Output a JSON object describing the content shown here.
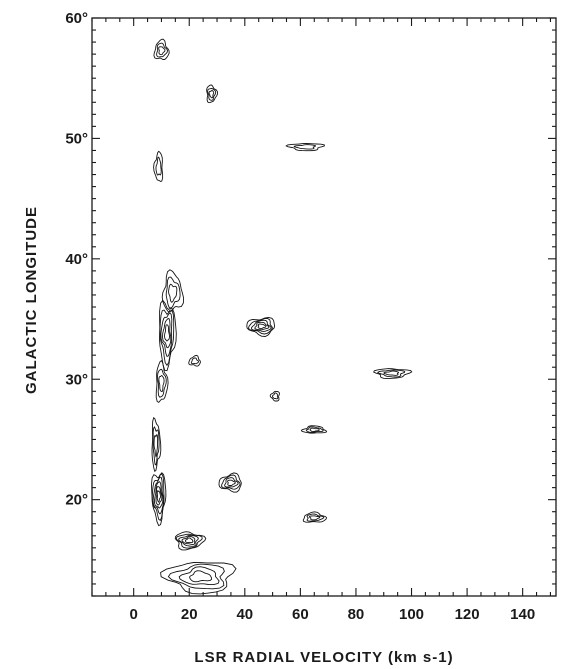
{
  "chart_data": {
    "type": "contour",
    "title": "",
    "xlabel": "LSR RADIAL VELOCITY (km s-1)",
    "ylabel": "GALACTIC LONGITUDE",
    "xlim": [
      -15,
      152
    ],
    "ylim": [
      12,
      60
    ],
    "x_ticks_labeled": [
      0,
      20,
      40,
      60,
      80,
      100,
      120,
      140
    ],
    "x_tick_labels": [
      "0",
      "20",
      "40",
      "60",
      "80",
      "100",
      "120",
      "140"
    ],
    "x_minor_step": 5,
    "y_ticks_labeled": [
      20,
      30,
      40,
      50,
      60
    ],
    "y_tick_labels": [
      "20°",
      "30°",
      "40°",
      "50°",
      "60°"
    ],
    "y_minor_step": 1,
    "grid": false,
    "legend": "none",
    "contour_color": "#151515",
    "features": [
      {
        "v": 10,
        "l": 57.3,
        "dv": 2.5,
        "dl": 0.8,
        "levels": 3
      },
      {
        "v": 28,
        "l": 53.7,
        "dv": 1.8,
        "dl": 0.7,
        "levels": 3
      },
      {
        "v": 62,
        "l": 49.3,
        "dv": 6,
        "dl": 0.3,
        "levels": 2
      },
      {
        "v": 9,
        "l": 47.6,
        "dv": 1.5,
        "dl": 1.2,
        "levels": 2
      },
      {
        "v": 14,
        "l": 37.2,
        "dv": 3.5,
        "dl": 1.6,
        "levels": 3
      },
      {
        "v": 12,
        "l": 33.8,
        "dv": 3,
        "dl": 2.6,
        "levels": 5
      },
      {
        "v": 46,
        "l": 34.4,
        "dv": 5,
        "dl": 0.7,
        "levels": 5
      },
      {
        "v": 22,
        "l": 31.5,
        "dv": 2,
        "dl": 0.4,
        "levels": 2
      },
      {
        "v": 10,
        "l": 29.7,
        "dv": 2,
        "dl": 1.6,
        "levels": 3
      },
      {
        "v": 93,
        "l": 30.5,
        "dv": 6,
        "dl": 0.4,
        "levels": 3
      },
      {
        "v": 51,
        "l": 28.6,
        "dv": 1.5,
        "dl": 0.4,
        "levels": 2
      },
      {
        "v": 65,
        "l": 25.8,
        "dv": 4,
        "dl": 0.3,
        "levels": 3
      },
      {
        "v": 8,
        "l": 24.6,
        "dv": 1.5,
        "dl": 2,
        "levels": 3
      },
      {
        "v": 9,
        "l": 20.3,
        "dv": 2.5,
        "dl": 2,
        "levels": 6
      },
      {
        "v": 35,
        "l": 21.4,
        "dv": 4,
        "dl": 0.7,
        "levels": 4
      },
      {
        "v": 65,
        "l": 18.5,
        "dv": 4,
        "dl": 0.4,
        "levels": 3
      },
      {
        "v": 20,
        "l": 16.6,
        "dv": 5,
        "dl": 0.7,
        "levels": 5
      },
      {
        "v": 24,
        "l": 13.6,
        "dv": 12,
        "dl": 1.3,
        "levels": 4
      }
    ]
  }
}
